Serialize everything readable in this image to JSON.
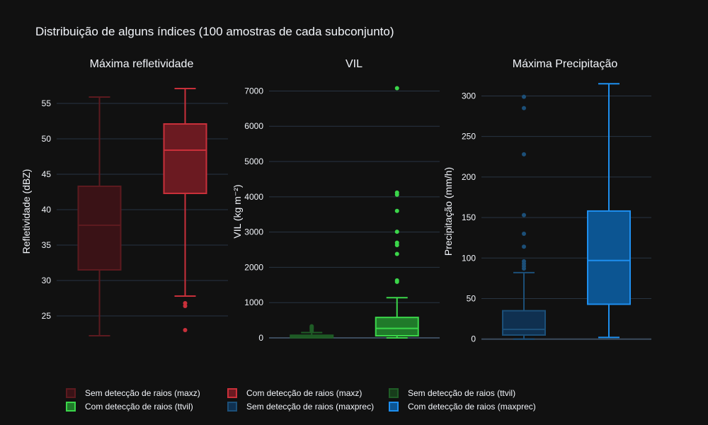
{
  "title": "Distribuição de alguns índices (100 amostras de cada subconjunto)",
  "chart_data": [
    {
      "type": "box",
      "title": "Máxima refletividade",
      "ylabel": "Refletividade (dBZ)",
      "ylim": [
        21.5,
        58
      ],
      "yticks": [
        25,
        30,
        35,
        40,
        45,
        50,
        55
      ],
      "series": [
        {
          "name": "Sem detecção de raios (maxz)",
          "color": "#5c1a1f",
          "fill": "#3a1216",
          "q1": 31.5,
          "median": 37.8,
          "q3": 43.3,
          "lowerfence": 22.2,
          "upperfence": 55.9,
          "outliers": []
        },
        {
          "name": "Com detecção de raios (maxz)",
          "color": "#c9303a",
          "fill": "#6b1a21",
          "q1": 42.3,
          "median": 48.4,
          "q3": 52.1,
          "lowerfence": 27.8,
          "upperfence": 57.1,
          "outliers": [
            26.8,
            26.4,
            23.0
          ]
        }
      ]
    },
    {
      "type": "box",
      "title": "VIL",
      "ylabel": "VIL (kg m⁻²)",
      "ylim": [
        -80,
        7250
      ],
      "yticks": [
        0,
        1000,
        2000,
        3000,
        4000,
        5000,
        6000,
        7000
      ],
      "series": [
        {
          "name": "Sem detecção de raios (ttvil)",
          "color": "#1f5c26",
          "fill": "#173d1b",
          "q1": 5,
          "median": 30,
          "q3": 75,
          "lowerfence": 0,
          "upperfence": 150,
          "outliers": [
            200,
            250,
            280,
            300,
            330
          ]
        },
        {
          "name": "Com detecção de raios (ttvil)",
          "color": "#3bd64a",
          "fill": "#207a2a",
          "q1": 60,
          "median": 270,
          "q3": 580,
          "lowerfence": 0,
          "upperfence": 1140,
          "outliers": [
            1590,
            1630,
            2380,
            2630,
            2700,
            3010,
            3600,
            4060,
            4120,
            7080
          ]
        }
      ]
    },
    {
      "type": "box",
      "title": "Máxima Precipitação",
      "ylabel": "Precipitação (mm/h)",
      "ylim": [
        -2,
        317
      ],
      "yticks": [
        0,
        50,
        100,
        150,
        200,
        250,
        300
      ],
      "series": [
        {
          "name": "Sem detecção de raios (maxprec)",
          "color": "#1c4f78",
          "fill": "#0f3050",
          "q1": 5,
          "median": 12,
          "q3": 35,
          "lowerfence": 0,
          "upperfence": 82,
          "outliers": [
            87,
            90,
            93,
            96,
            114,
            130,
            153,
            228,
            285,
            299
          ]
        },
        {
          "name": "Com detecção de raios (maxprec)",
          "color": "#1e8fef",
          "fill": "#0c5592",
          "q1": 43,
          "median": 97,
          "q3": 158,
          "lowerfence": 2,
          "upperfence": 315,
          "outliers": []
        }
      ]
    }
  ],
  "legend": [
    {
      "label": "Sem detecção de raios (maxz)",
      "color": "#5c1a1f",
      "fill": "#3a1216"
    },
    {
      "label": "Com detecção de raios (maxz)",
      "color": "#c9303a",
      "fill": "#6b1a21"
    },
    {
      "label": "Sem detecção de raios (ttvil)",
      "color": "#1f5c26",
      "fill": "#173d1b"
    },
    {
      "label": "Com detecção de raios (ttvil)",
      "color": "#3bd64a",
      "fill": "#207a2a"
    },
    {
      "label": "Sem detecção de raios (maxprec)",
      "color": "#1c4f78",
      "fill": "#0f3050"
    },
    {
      "label": "Com detecção de raios (maxprec)",
      "color": "#1e8fef",
      "fill": "#0c5592"
    }
  ]
}
